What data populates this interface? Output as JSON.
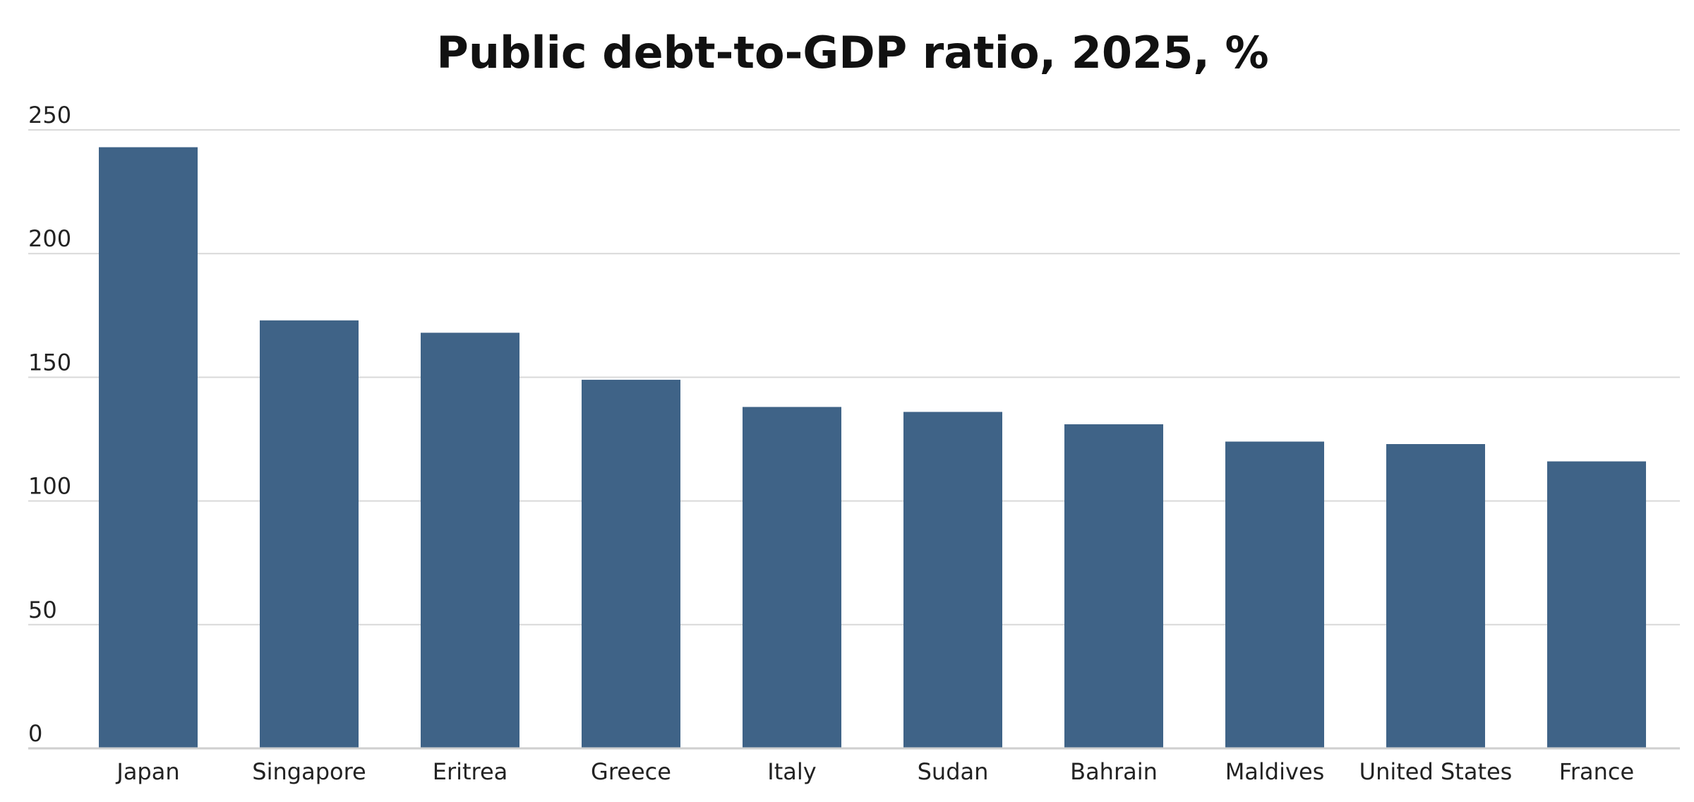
{
  "chart_data": {
    "type": "bar",
    "title": "Public debt-to-GDP ratio, 2025, %",
    "xlabel": "",
    "ylabel": "",
    "categories": [
      "Japan",
      "Singapore",
      "Eritrea",
      "Greece",
      "Italy",
      "Sudan",
      "Bahrain",
      "Maldives",
      "United States",
      "France"
    ],
    "values": [
      243,
      173,
      168,
      149,
      138,
      136,
      131,
      124,
      123,
      116
    ],
    "ylim": [
      0,
      250
    ],
    "yticks": [
      0,
      50,
      100,
      150,
      200,
      250
    ],
    "grid": true,
    "legend": "none",
    "bar_color": "#3f6387"
  }
}
